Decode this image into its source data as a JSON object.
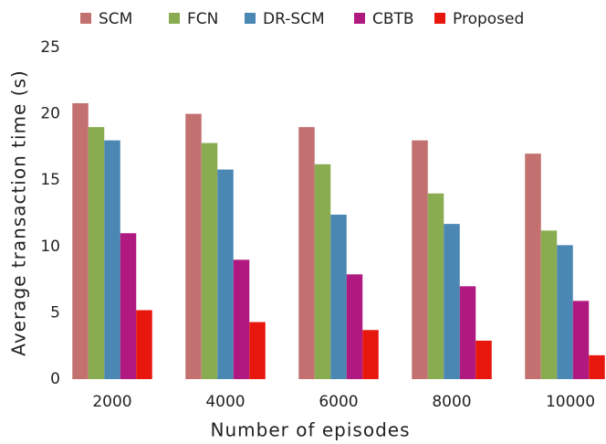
{
  "chart_data": {
    "type": "bar",
    "categories": [
      "2000",
      "4000",
      "6000",
      "8000",
      "10000"
    ],
    "x_label": "Number of episodes",
    "y_label": "Average transaction time (s)",
    "ylim": [
      0,
      25
    ],
    "yticks": [
      0,
      5,
      10,
      15,
      20,
      25
    ],
    "grid": false,
    "legend": "top",
    "series": [
      {
        "name": "SCM",
        "color": "#c27170",
        "values": [
          20.8,
          20.0,
          19.0,
          18.0,
          17.0
        ]
      },
      {
        "name": "FCN",
        "color": "#8aac50",
        "values": [
          19.0,
          17.8,
          16.2,
          14.0,
          11.2
        ]
      },
      {
        "name": "DR-SCM",
        "color": "#4a87b3",
        "values": [
          18.0,
          15.8,
          12.4,
          11.7,
          10.1
        ]
      },
      {
        "name": "CBTB",
        "color": "#b01a80",
        "values": [
          11.0,
          9.0,
          7.9,
          7.0,
          5.9
        ]
      },
      {
        "name": "Proposed",
        "color": "#e8170d",
        "values": [
          5.2,
          4.3,
          3.7,
          2.9,
          1.8
        ]
      }
    ]
  }
}
